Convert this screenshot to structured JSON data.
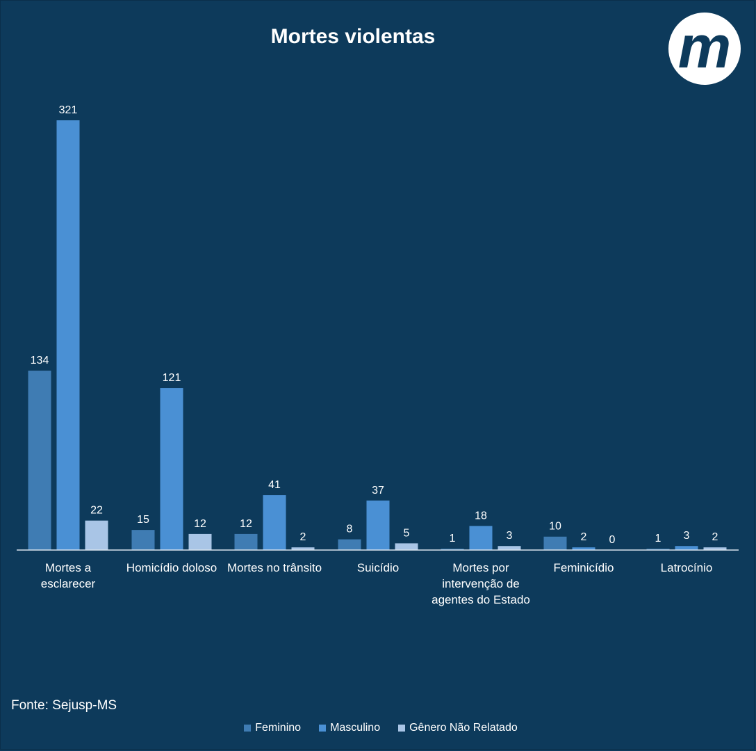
{
  "chart_data": {
    "type": "bar",
    "title": "Mortes violentas",
    "categories": [
      [
        "Mortes a",
        "esclarecer"
      ],
      [
        "Homicídio doloso"
      ],
      [
        "Mortes no trânsito"
      ],
      [
        "Suicídio"
      ],
      [
        "Mortes por",
        "intervenção de",
        "agentes do Estado"
      ],
      [
        "Feminicídio"
      ],
      [
        "Latrocínio"
      ]
    ],
    "series": [
      {
        "name": "Feminino",
        "color": "#3f7cb3",
        "values": [
          134,
          15,
          12,
          8,
          1,
          10,
          1
        ]
      },
      {
        "name": "Masculino",
        "color": "#4a90d4",
        "values": [
          321,
          121,
          41,
          37,
          18,
          2,
          3
        ]
      },
      {
        "name": "Gênero Não Relatado",
        "color": "#a9c5e6",
        "values": [
          22,
          12,
          2,
          5,
          3,
          0,
          2
        ]
      }
    ],
    "ylim": [
      0,
      321
    ],
    "grid": false,
    "legend_position": "bottom"
  },
  "source": "Fonte: Sejusp-MS",
  "logo": {
    "letter": "m",
    "text_color": "#0d3a5b",
    "bg_color": "#ffffff"
  }
}
